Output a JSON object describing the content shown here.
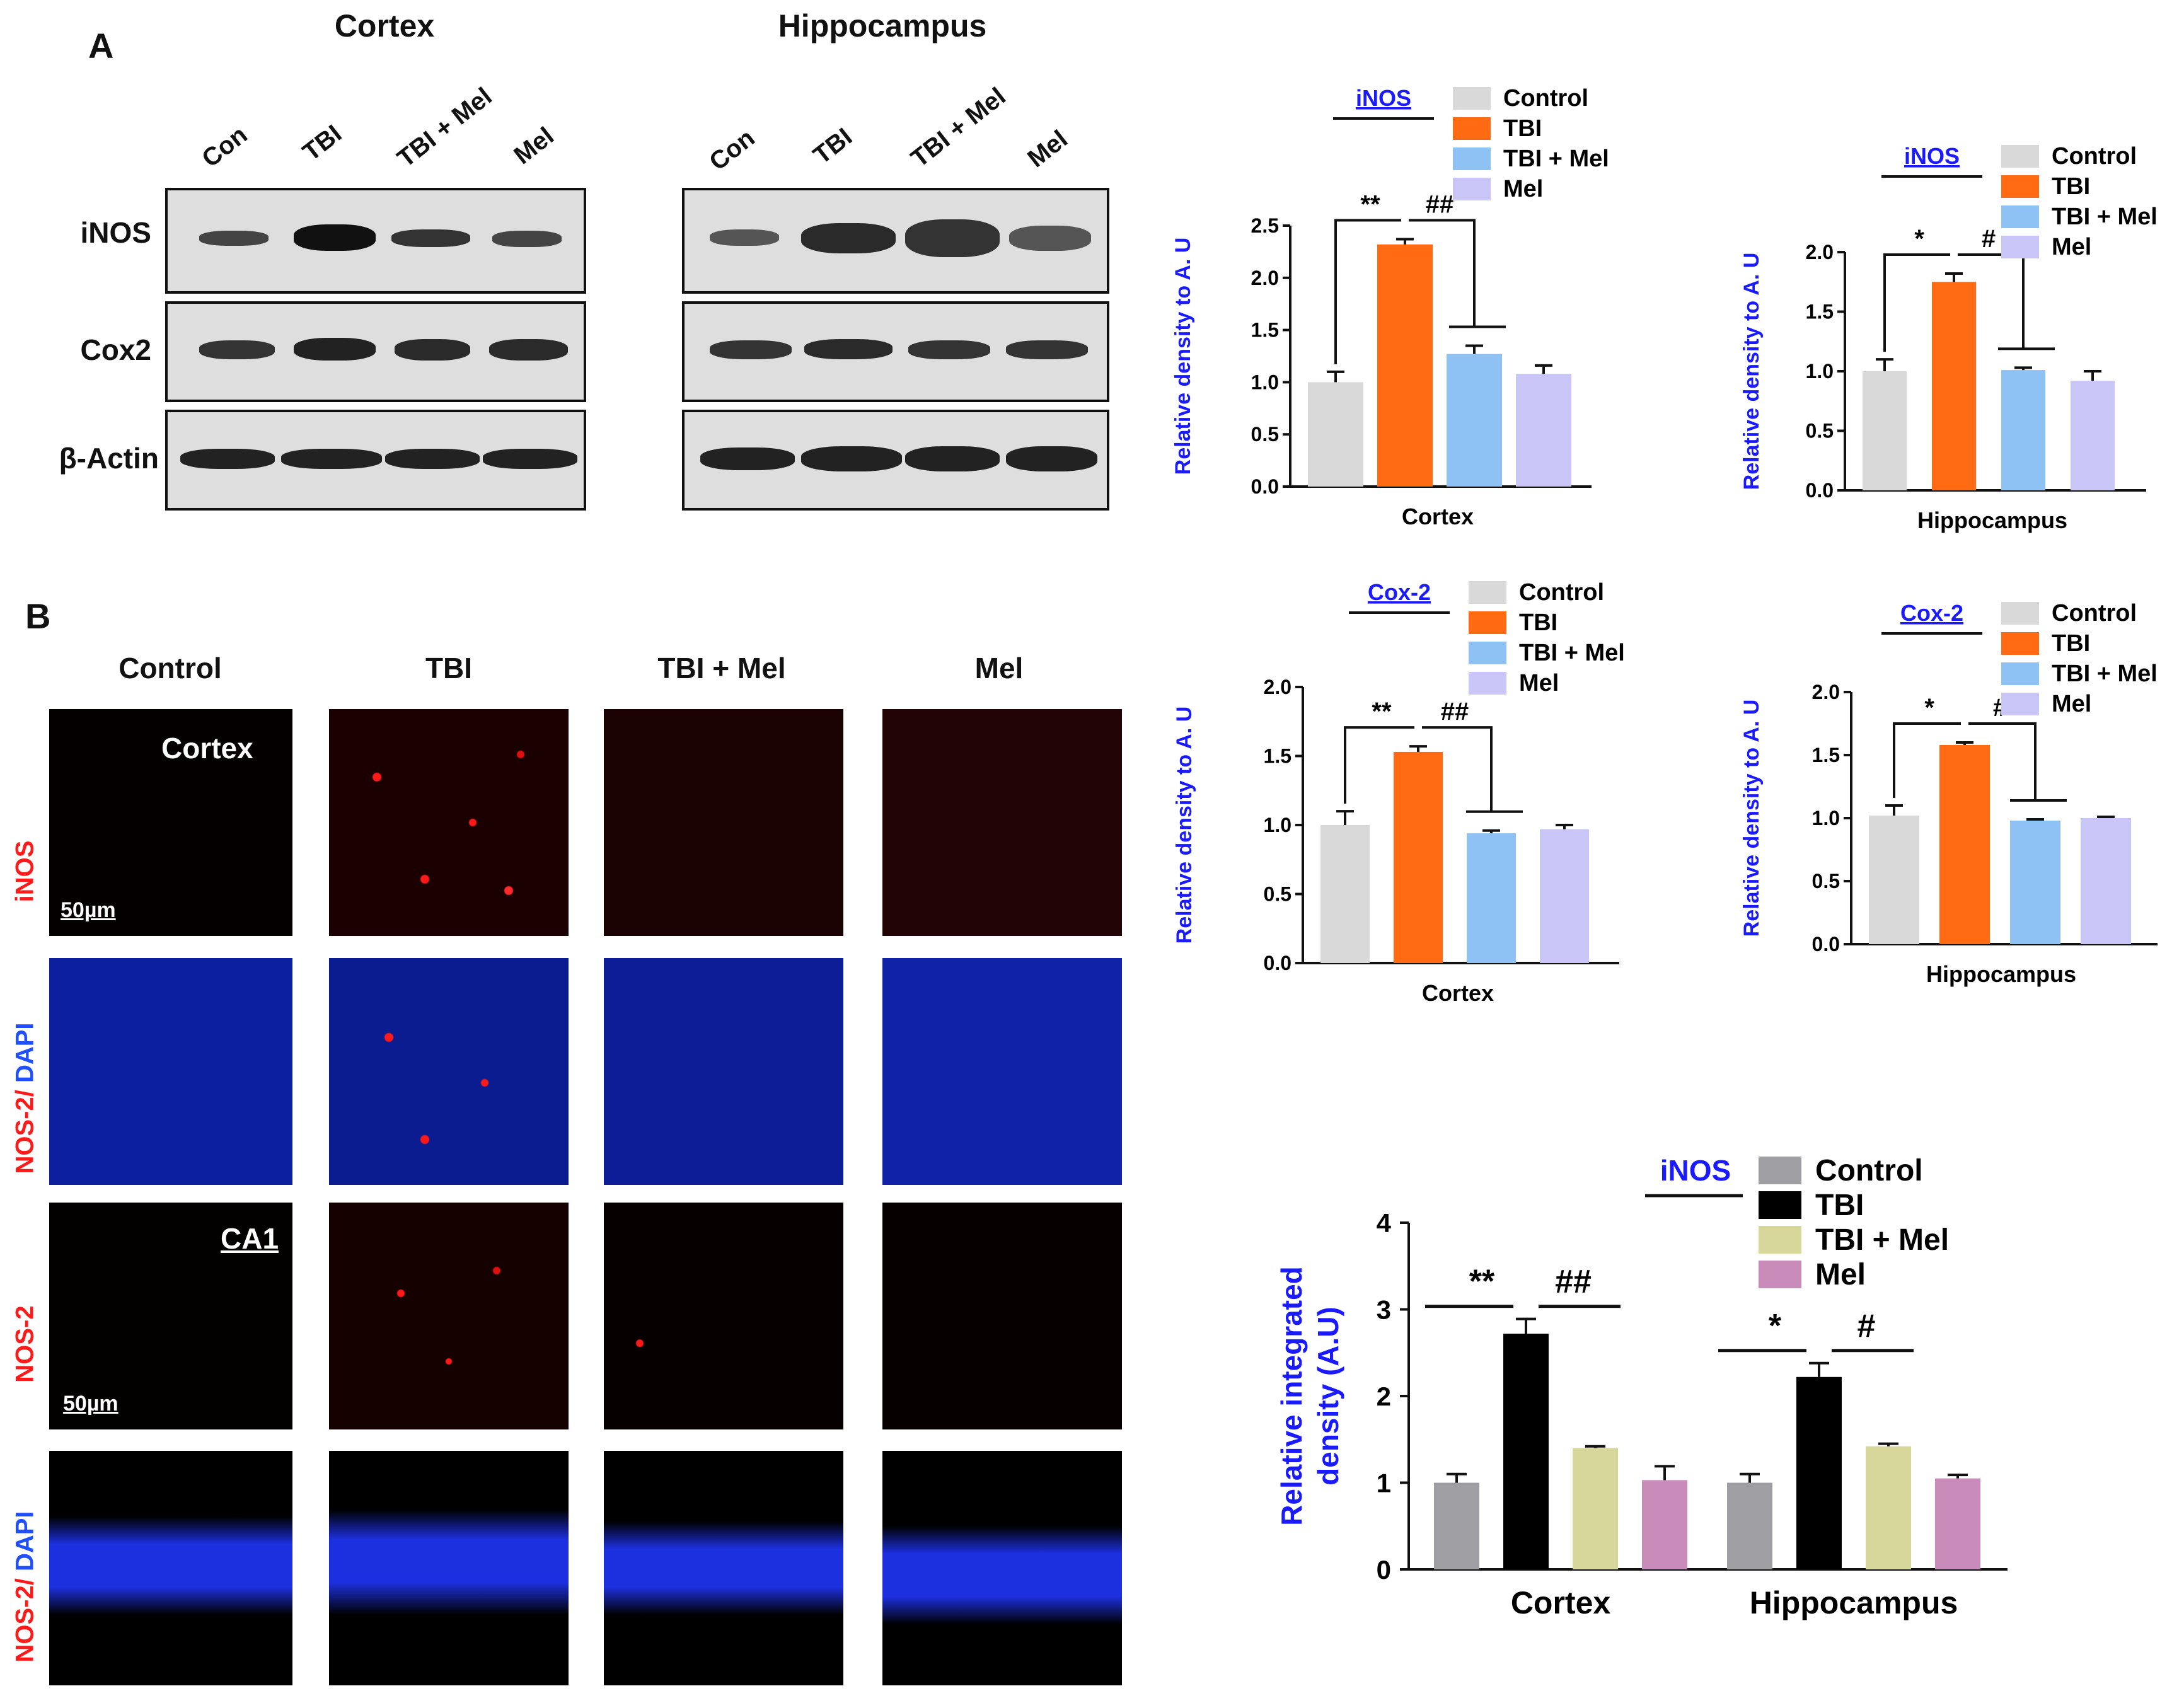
{
  "panels": {
    "a_letter": "A",
    "b_letter": "B"
  },
  "western_blot": {
    "cortex_title": "Cortex",
    "hippocampus_title": "Hippocampus",
    "lanes": [
      "Con",
      "TBI",
      "TBI + Mel",
      "Mel"
    ],
    "rows": [
      "iNOS",
      "Cox2",
      "β-Actin"
    ]
  },
  "microscopy": {
    "columns": [
      "Control",
      "TBI",
      "TBI + Mel",
      "Mel"
    ],
    "row_labels": [
      {
        "red": "iNOS",
        "blue": ""
      },
      {
        "red": "NOS-2/ ",
        "blue": "DAPI"
      },
      {
        "red": "NOS-2",
        "blue": ""
      },
      {
        "red": "NOS-2/ ",
        "blue": "DAPI"
      }
    ],
    "region_cortex": "Cortex",
    "region_ca1": "CA1",
    "scale_bar": "50µm"
  },
  "colors": {
    "control": "#d9d9d9",
    "tbi": "#ff6a13",
    "tbi_mel": "#8ec2f5",
    "mel": "#c9c5f7",
    "axis_label_blue": "#1a1aff",
    "red_stain": "#ff1a1a",
    "blue_stain": "#1f4fff",
    "b_control": "#9e9ea3",
    "b_tbi": "#000000",
    "b_tbi_mel": "#d7d79b",
    "b_mel": "#c98bb9"
  },
  "chart_data": [
    {
      "type": "bar",
      "legend_title": "iNOS",
      "categories": [
        "Control",
        "TBI",
        "TBI + Mel",
        "Mel"
      ],
      "values": [
        1.0,
        2.32,
        1.27,
        1.08
      ],
      "errors": [
        0.1,
        0.05,
        0.08,
        0.08
      ],
      "ylabel": "Relative density to A. U",
      "xlabel": "Cortex",
      "ylim": [
        0,
        2.5
      ],
      "yticks": [
        "0.0",
        "0.5",
        "1.0",
        "1.5",
        "2.0",
        "2.5"
      ],
      "significance": [
        "**",
        "##"
      ]
    },
    {
      "type": "bar",
      "legend_title": "iNOS",
      "categories": [
        "Control",
        "TBI",
        "TBI + Mel",
        "Mel"
      ],
      "values": [
        1.0,
        1.75,
        1.01,
        0.92
      ],
      "errors": [
        0.1,
        0.07,
        0.02,
        0.08
      ],
      "ylabel": "Relative density to A. U",
      "xlabel": "Hippocampus",
      "ylim": [
        0,
        2.0
      ],
      "yticks": [
        "0.0",
        "0.5",
        "1.0",
        "1.5",
        "2.0"
      ],
      "significance": [
        "*",
        "#"
      ]
    },
    {
      "type": "bar",
      "legend_title": "Cox-2",
      "categories": [
        "Control",
        "TBI",
        "TBI + Mel",
        "Mel"
      ],
      "values": [
        1.0,
        1.53,
        0.94,
        0.97
      ],
      "errors": [
        0.1,
        0.04,
        0.02,
        0.03
      ],
      "ylabel": "Relative density to A. U",
      "xlabel": "Cortex",
      "ylim": [
        0,
        2.0
      ],
      "yticks": [
        "0.0",
        "0.5",
        "1.0",
        "1.5",
        "2.0"
      ],
      "significance": [
        "**",
        "##"
      ]
    },
    {
      "type": "bar",
      "legend_title": "Cox-2",
      "categories": [
        "Control",
        "TBI",
        "TBI + Mel",
        "Mel"
      ],
      "values": [
        1.02,
        1.58,
        0.98,
        1.0
      ],
      "errors": [
        0.08,
        0.02,
        0.01,
        0.01
      ],
      "ylabel": "Relative density to A. U",
      "xlabel": "Hippocampus",
      "ylim": [
        0,
        2.0
      ],
      "yticks": [
        "0.0",
        "0.5",
        "1.0",
        "1.5",
        "2.0"
      ],
      "significance": [
        "*",
        "#"
      ]
    },
    {
      "type": "bar",
      "legend_title": "iNOS",
      "categories": [
        "Cortex",
        "Hippocampus"
      ],
      "series": [
        {
          "name": "Control",
          "values": [
            1.0,
            1.0
          ],
          "errors": [
            0.1,
            0.1
          ]
        },
        {
          "name": "TBI",
          "values": [
            2.72,
            2.22
          ],
          "errors": [
            0.17,
            0.16
          ]
        },
        {
          "name": "TBI + Mel",
          "values": [
            1.4,
            1.42
          ],
          "errors": [
            0.02,
            0.03
          ]
        },
        {
          "name": "Mel",
          "values": [
            1.03,
            1.05
          ],
          "errors": [
            0.16,
            0.04
          ]
        }
      ],
      "ylabel": "Relative integrated density (A.U)",
      "ylim": [
        0,
        4
      ],
      "yticks": [
        "0",
        "1",
        "2",
        "3",
        "4"
      ],
      "significance": [
        [
          "**",
          "##"
        ],
        [
          "*",
          "#"
        ]
      ]
    }
  ]
}
